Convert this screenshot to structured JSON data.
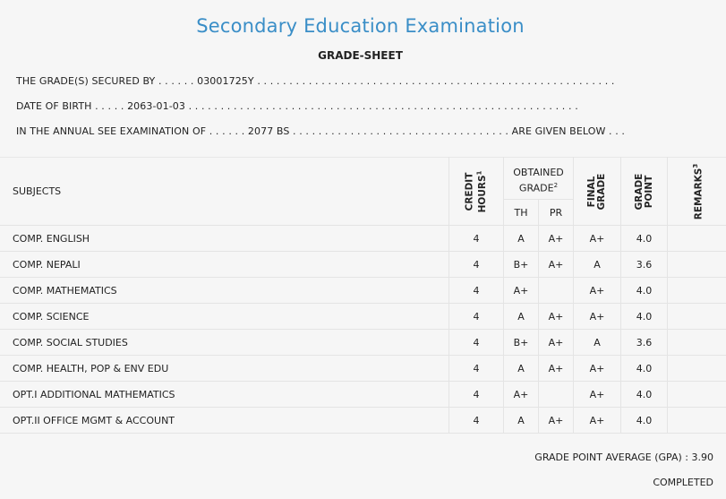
{
  "header": {
    "title": "Secondary Education Examination",
    "subtitle": "GRADE-SHEET"
  },
  "info": {
    "line1": "THE GRADE(S) SECURED BY . . . . . . 03001725Y . . . . . . . . . . . . . . . . . . . . . . . . . . . . . . . . . . . . . . . . . . . . . . . . . . . . . . . .",
    "line2": "DATE OF BIRTH . . . . . 2063-01-03 . . . . . . . . . . . . . . . . . . . . . . . . . . . . . . . . . . . . . . . . . . . . . . . . . . . . . . . . . . . . .",
    "line3": "IN THE ANNUAL SEE EXAMINATION OF . . . . . . 2077 BS . . . . . . . . . . . . . . . . . . . . . . . . . . . . . . . . . . ARE GIVEN BELOW . . ."
  },
  "columns": {
    "subjects": "SUBJECTS",
    "credit_line1": "CREDIT",
    "credit_line2": "HOURS",
    "credit_sup": "1",
    "obtained_line1": "OBTAINED",
    "obtained_line2": "GRADE",
    "obtained_sup": "2",
    "th": "TH",
    "pr": "PR",
    "final_line1": "FINAL",
    "final_line2": "GRADE",
    "gp_line1": "GRADE",
    "gp_line2": "POINT",
    "remarks": "REMARKS",
    "remarks_sup": "3"
  },
  "rows": [
    {
      "subject": "COMP. ENGLISH",
      "credit": "4",
      "th": "A",
      "pr": "A+",
      "final": "A+",
      "gp": "4.0",
      "remarks": ""
    },
    {
      "subject": "COMP. NEPALI",
      "credit": "4",
      "th": "B+",
      "pr": "A+",
      "final": "A",
      "gp": "3.6",
      "remarks": ""
    },
    {
      "subject": "COMP. MATHEMATICS",
      "credit": "4",
      "th": "A+",
      "pr": "",
      "final": "A+",
      "gp": "4.0",
      "remarks": ""
    },
    {
      "subject": "COMP. SCIENCE",
      "credit": "4",
      "th": "A",
      "pr": "A+",
      "final": "A+",
      "gp": "4.0",
      "remarks": ""
    },
    {
      "subject": "COMP. SOCIAL STUDIES",
      "credit": "4",
      "th": "B+",
      "pr": "A+",
      "final": "A",
      "gp": "3.6",
      "remarks": ""
    },
    {
      "subject": "COMP. HEALTH, POP & ENV EDU",
      "credit": "4",
      "th": "A",
      "pr": "A+",
      "final": "A+",
      "gp": "4.0",
      "remarks": ""
    },
    {
      "subject": "OPT.I ADDITIONAL MATHEMATICS",
      "credit": "4",
      "th": "A+",
      "pr": "",
      "final": "A+",
      "gp": "4.0",
      "remarks": ""
    },
    {
      "subject": "OPT.II OFFICE MGMT & ACCOUNT",
      "credit": "4",
      "th": "A",
      "pr": "A+",
      "final": "A+",
      "gp": "4.0",
      "remarks": ""
    }
  ],
  "summary": {
    "gpa": "GRADE POINT AVERAGE (GPA) : 3.90",
    "status": "COMPLETED"
  }
}
